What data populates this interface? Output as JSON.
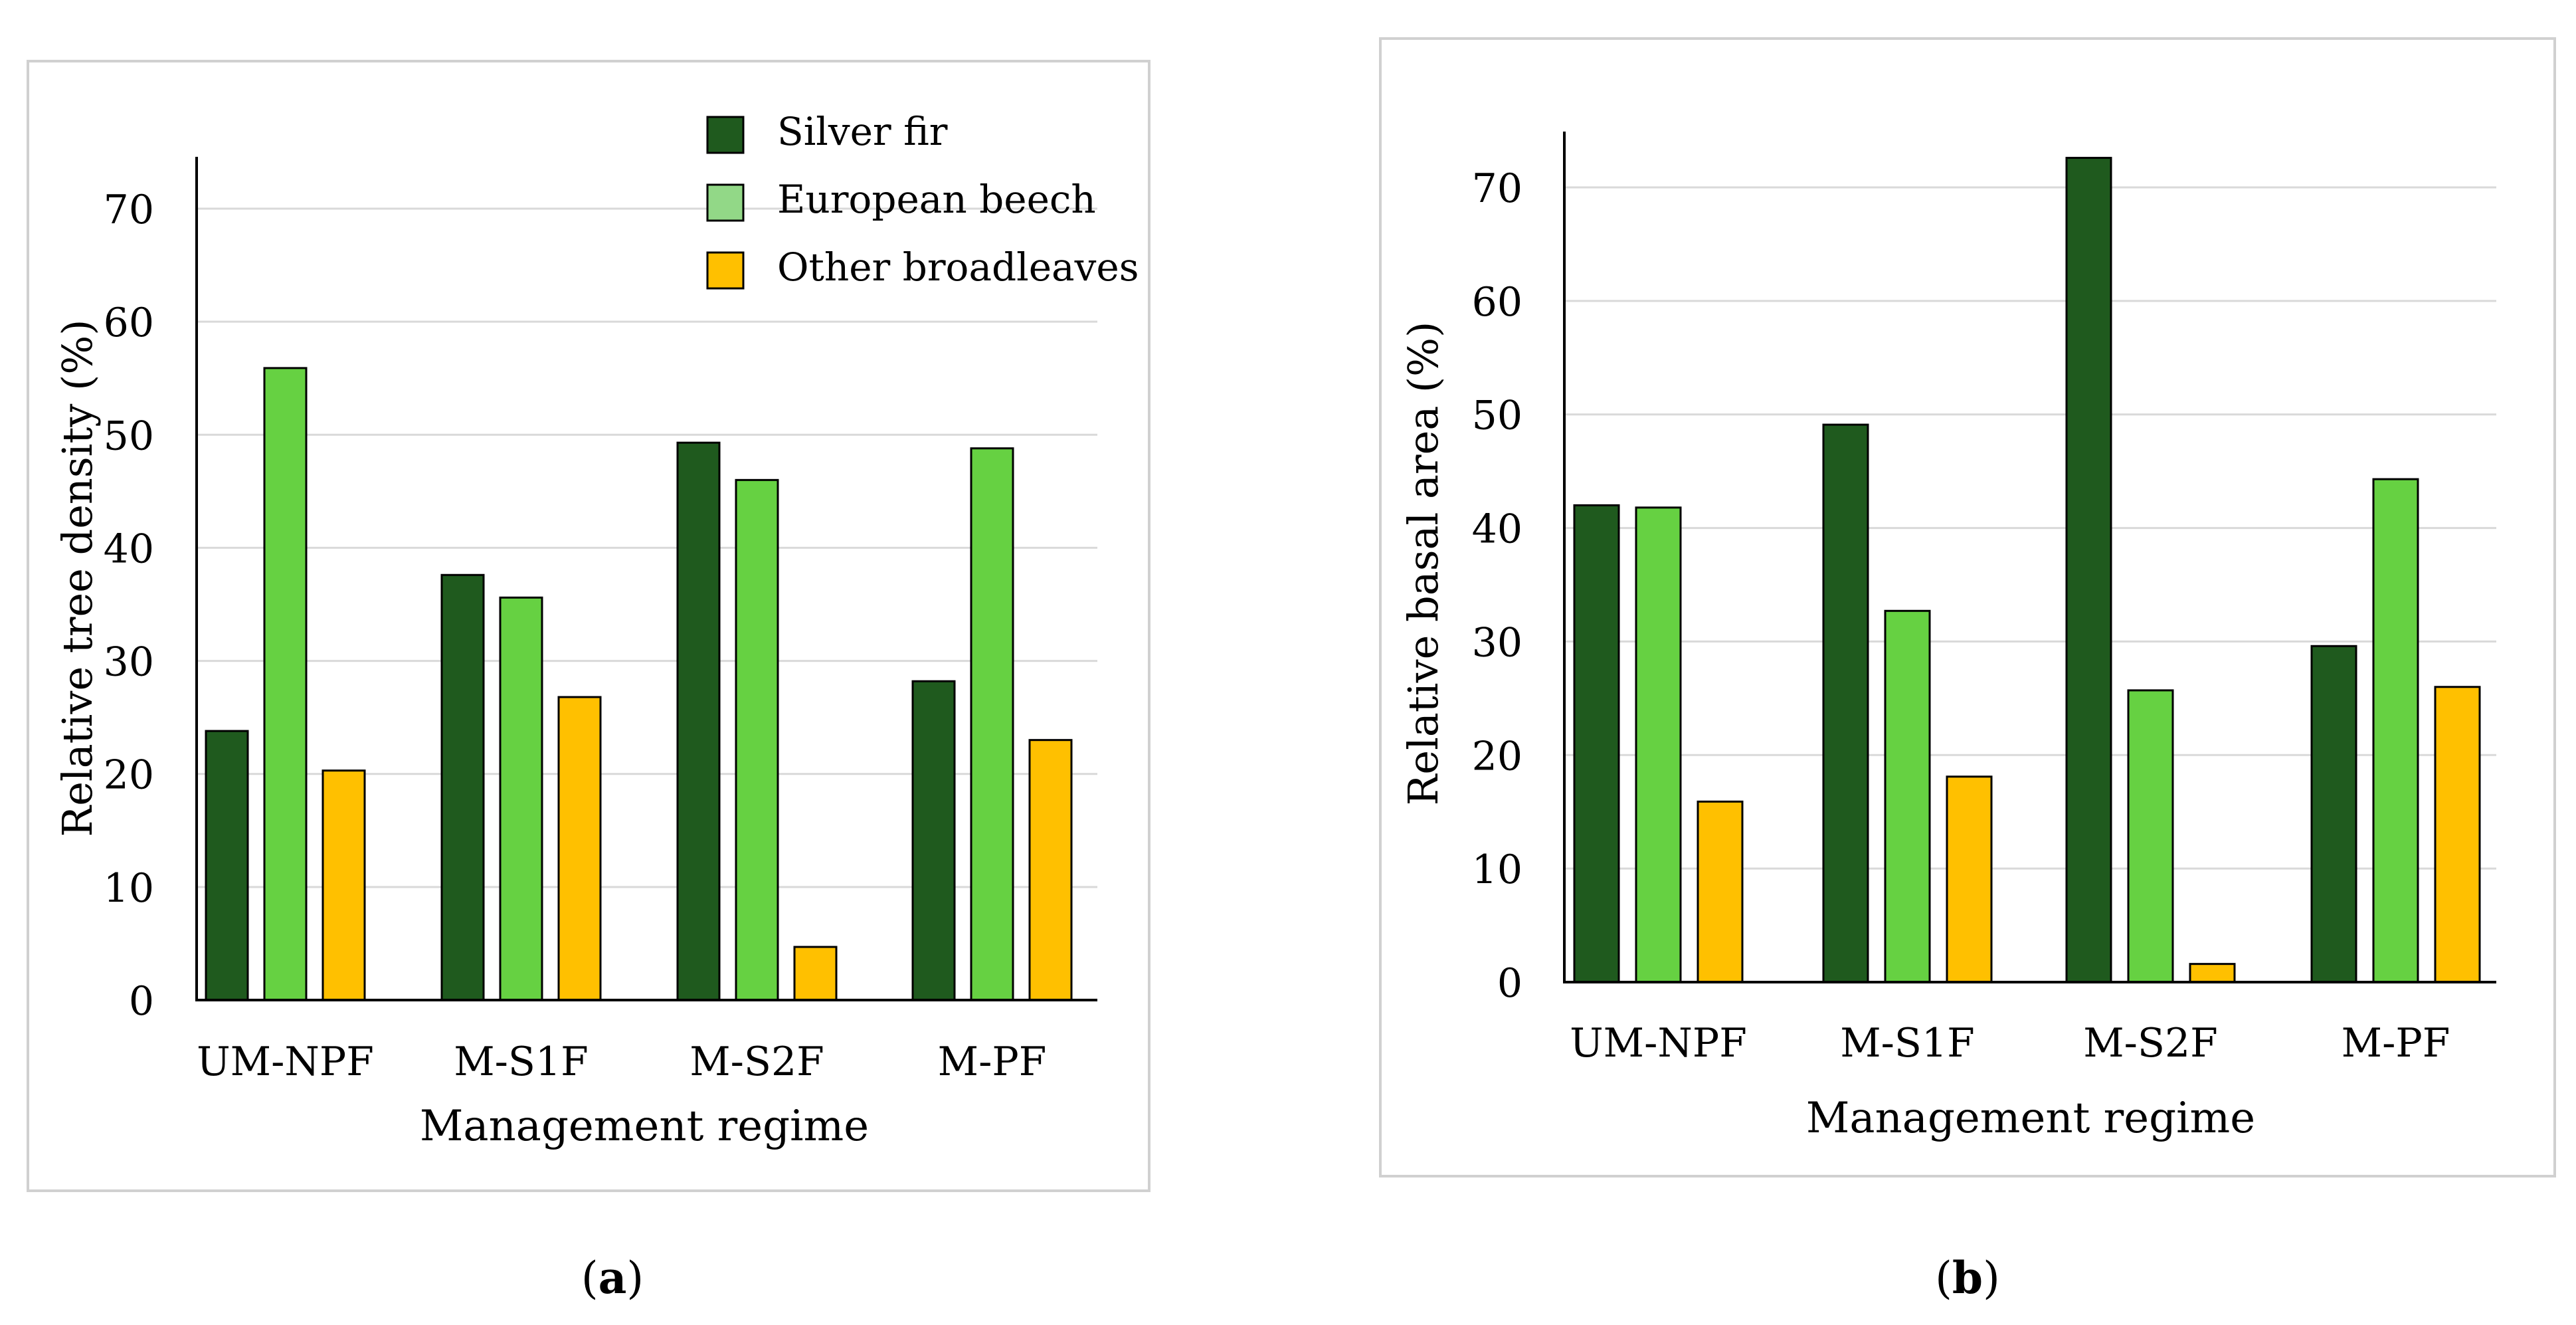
{
  "colors": {
    "silver_fir": "#1f5a1e",
    "european_beech": "#66d142",
    "other_broadleaves": "#ffc000",
    "legend_beech_swatch": "#92d887",
    "bar_outline": "#000000",
    "grid": "#d9d9d9",
    "panel_border": "#d0d0d0"
  },
  "chart_data": [
    {
      "type": "bar",
      "panel_label": "(a)",
      "panel_letter": "a",
      "title": "",
      "xlabel": "Management regime",
      "ylabel": "Relative tree density (%)",
      "ylim": [
        0,
        75
      ],
      "yticks": [
        0,
        10,
        20,
        30,
        40,
        50,
        60,
        70
      ],
      "grid": true,
      "legend": "top-right",
      "categories": [
        "UM-NPF",
        "M-S1F",
        "M-S2F",
        "M-PF"
      ],
      "series": [
        {
          "name": "Silver fir",
          "color_key": "silver_fir",
          "values": [
            23.8,
            37.6,
            49.3,
            28.2
          ]
        },
        {
          "name": "European beech",
          "color_key": "european_beech",
          "values": [
            55.9,
            35.6,
            46.0,
            48.8
          ]
        },
        {
          "name": "Other broadleaves",
          "color_key": "other_broadleaves",
          "values": [
            20.3,
            26.8,
            4.7,
            23.0
          ]
        }
      ]
    },
    {
      "type": "bar",
      "panel_label": "(b)",
      "panel_letter": "b",
      "title": "",
      "xlabel": "Management regime",
      "ylabel": "Relative basal area (%)",
      "ylim": [
        0,
        75
      ],
      "yticks": [
        0,
        10,
        20,
        30,
        40,
        50,
        60,
        70
      ],
      "grid": true,
      "legend": "none",
      "categories": [
        "UM-NPF",
        "M-S1F",
        "M-S2F",
        "M-PF"
      ],
      "series": [
        {
          "name": "Silver fir",
          "color_key": "silver_fir",
          "values": [
            42.0,
            49.1,
            72.6,
            29.6
          ]
        },
        {
          "name": "European beech",
          "color_key": "european_beech",
          "values": [
            41.8,
            32.7,
            25.7,
            44.3
          ]
        },
        {
          "name": "Other broadleaves",
          "color_key": "other_broadleaves",
          "values": [
            15.9,
            18.1,
            1.6,
            26.0
          ]
        }
      ]
    }
  ]
}
